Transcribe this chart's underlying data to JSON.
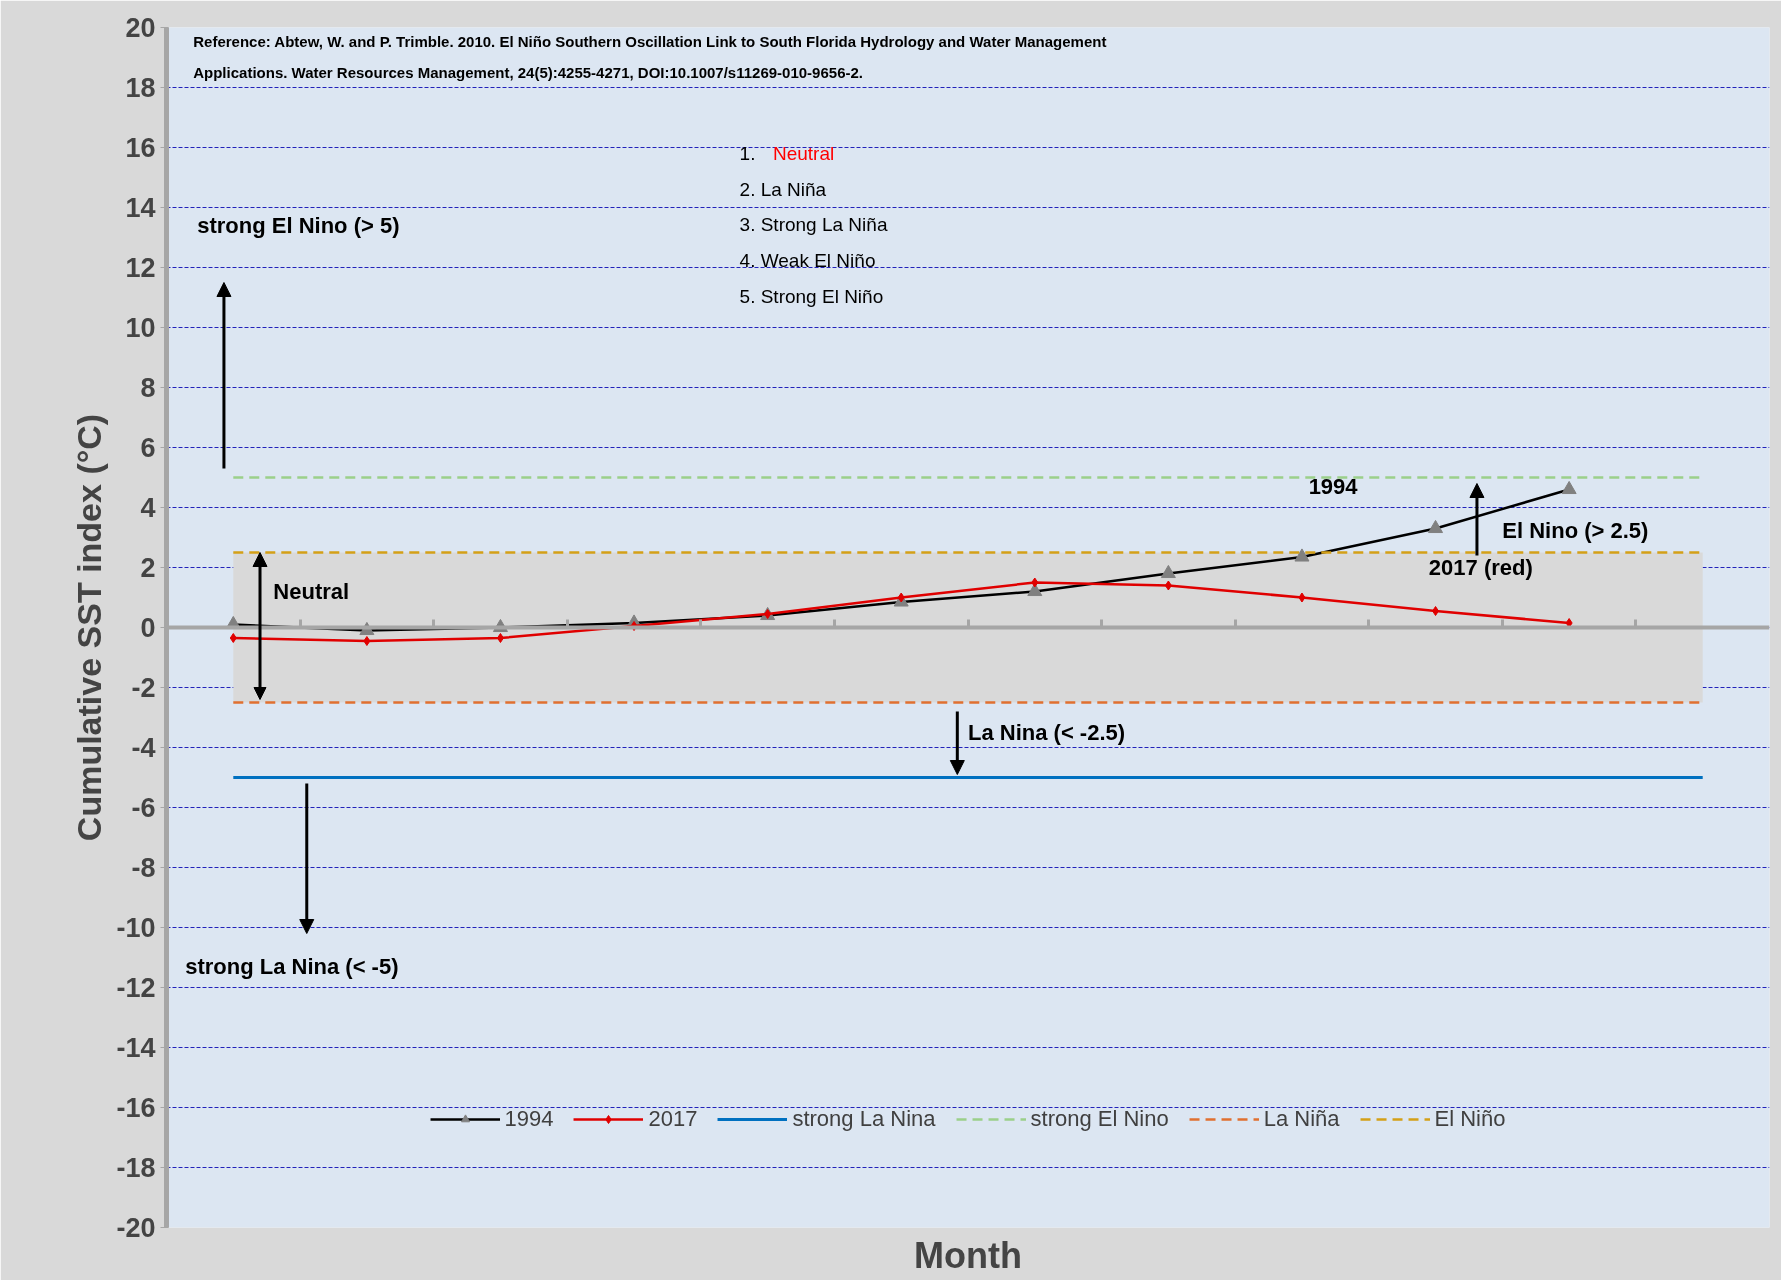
{
  "chart_data": {
    "type": "line",
    "xlabel": "Month",
    "ylabel": "Cumulative SST index (°C)",
    "categories": [
      null,
      null,
      null,
      null,
      null,
      null,
      null,
      null,
      null,
      null,
      null,
      null
    ],
    "series": [
      {
        "name": "1994",
        "color": "#000000",
        "marker": "triangle",
        "values": [
          0.1,
          -0.1,
          0,
          0.15,
          0.4,
          0.85,
          1.2,
          1.8,
          2.35,
          3.3,
          4.6,
          null
        ]
      },
      {
        "name": "2017",
        "color": "#e00000",
        "marker": "diamond",
        "values": [
          -0.35,
          -0.45,
          -0.35,
          0.05,
          0.45,
          1.0,
          1.5,
          1.4,
          1.0,
          0.55,
          0.15,
          null
        ]
      },
      {
        "name": "strong La Nina",
        "color": "#0070c0",
        "line_style": "solid",
        "values": [
          -5,
          -5,
          -5,
          -5,
          -5,
          -5,
          -5,
          -5,
          -5,
          -5,
          -5,
          -5
        ]
      },
      {
        "name": "strong El Nino",
        "color": "#9bd08a",
        "line_style": "dashed",
        "values": [
          5,
          5,
          5,
          5,
          5,
          5,
          5,
          5,
          5,
          5,
          5,
          5
        ]
      },
      {
        "name": "La Niña",
        "color": "#e07030",
        "line_style": "dashed",
        "values": [
          -2.5,
          -2.5,
          -2.5,
          -2.5,
          -2.5,
          -2.5,
          -2.5,
          -2.5,
          -2.5,
          -2.5,
          -2.5,
          -2.5
        ]
      },
      {
        "name": "El Niño",
        "color": "#d4a017",
        "line_style": "dashed",
        "values": [
          2.5,
          2.5,
          2.5,
          2.5,
          2.5,
          2.5,
          2.5,
          2.5,
          2.5,
          2.5,
          2.5,
          2.5
        ]
      }
    ],
    "bands": [
      {
        "axis": "y",
        "from": -2.5,
        "to": 2.5,
        "color": "#d9d9d9"
      }
    ],
    "ylim": [
      -20,
      20
    ],
    "yticks": [
      -20,
      -18,
      -16,
      -14,
      -12,
      -10,
      -8,
      -6,
      -4,
      -2,
      0,
      2,
      4,
      6,
      8,
      10,
      12,
      14,
      16,
      18,
      20
    ],
    "grid": "y",
    "legend": "bottom",
    "tick_labels": "y",
    "annotations": [
      "Reference: Abtew, W. and P. Trimble. 2010. El Niño Southern Oscillation Link to South Florida Hydrology and Water Management",
      "Applications. Water Resources Management, 24(5):4255-4271, DOI:10.1007/s11269-010-9656-2.",
      "strong El Nino (> 5)",
      "Neutral",
      "La Nina (< -2.5)",
      "strong La Nina (<  -5)",
      "1994",
      "El Nino (> 2.5)",
      "2017 (red)",
      "1.",
      "Neutral",
      "2. La Niña",
      "3. Strong  La Niña",
      "4. Weak El Niño",
      "5. Strong  El Niño"
    ]
  }
}
